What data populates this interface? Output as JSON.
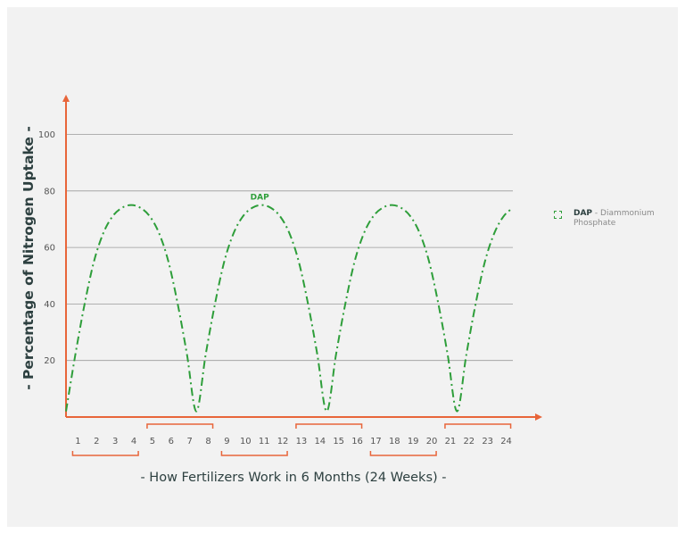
{
  "chart_data": {
    "type": "line",
    "title": "",
    "ylabel": "- Percentage of Nitrogen Uptake -",
    "xlabel": "- How Fertilizers Work in 6 Months (24 Weeks) -",
    "ylim": [
      0,
      110
    ],
    "xlim": [
      0,
      24
    ],
    "yticks": [
      20,
      40,
      60,
      80,
      100
    ],
    "xticks": [
      "1",
      "2",
      "3",
      "4",
      "5",
      "6",
      "7",
      "8",
      "9",
      "10",
      "11",
      "12",
      "13",
      "14",
      "15",
      "16",
      "17",
      "18",
      "19",
      "20",
      "21",
      "22",
      "23",
      "24"
    ],
    "grid": true,
    "legend_position": "right",
    "month_groups": [
      [
        1,
        4
      ],
      [
        5,
        8
      ],
      [
        9,
        12
      ],
      [
        13,
        16
      ],
      [
        17,
        20
      ],
      [
        21,
        24
      ]
    ],
    "series": [
      {
        "name": "DAP",
        "label": "DAP",
        "color": "#2e9e3a",
        "line_style": "dash-dot",
        "x": [
          0,
          0.5,
          1,
          1.5,
          2,
          2.5,
          3,
          3.5,
          4,
          4.5,
          5,
          5.5,
          6,
          6.5,
          7,
          7.5,
          8,
          8.5,
          9,
          9.5,
          10,
          10.5,
          11,
          11.5,
          12,
          12.5,
          13,
          13.5,
          14,
          14.5,
          15,
          15.5,
          16,
          16.5,
          17,
          17.5,
          18,
          18.5,
          19,
          19.5,
          20,
          20.5,
          21,
          21.5,
          22,
          22.5,
          23,
          23.5,
          24
        ],
        "values": [
          2,
          22,
          40,
          55,
          65,
          71,
          74,
          75,
          74,
          71,
          65,
          55,
          40,
          22,
          2,
          22,
          40,
          55,
          65,
          71,
          74,
          75,
          74,
          71,
          65,
          55,
          40,
          22,
          2,
          22,
          40,
          55,
          65,
          71,
          74,
          75,
          74,
          71,
          65,
          55,
          40,
          22,
          2,
          22,
          40,
          55,
          65,
          71,
          74
        ]
      }
    ]
  },
  "legend": {
    "name": "DAP",
    "description": " - Diammonium Phosphate",
    "color": "#2e9e3a"
  },
  "colors": {
    "axis": "#e8653a",
    "grid": "#9a9a9a",
    "text": "#2d4040",
    "tick_text": "#555555"
  }
}
